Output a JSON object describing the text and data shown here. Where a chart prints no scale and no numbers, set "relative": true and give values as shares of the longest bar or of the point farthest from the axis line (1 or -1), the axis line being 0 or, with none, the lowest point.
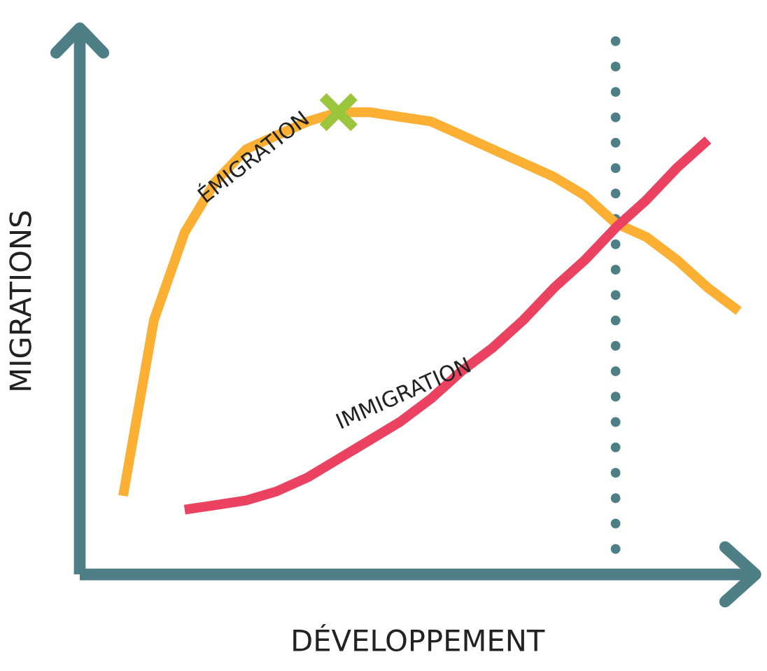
{
  "chart_data": {
    "type": "line",
    "relative": true,
    "xlabel": "DÉVELOPPEMENT",
    "ylabel": "MIGRATIONS",
    "categories": [
      null,
      null,
      null,
      null,
      null,
      null,
      null,
      null,
      null,
      null,
      null,
      null,
      null,
      null,
      null,
      null,
      null,
      null,
      null,
      null,
      null
    ],
    "series": [
      {
        "name": "ÉMIGRATION",
        "color": "#fbb034",
        "values": [
          0.17,
          0.55,
          0.74,
          0.85,
          0.92,
          0.95,
          0.98,
          1.0,
          1.0,
          0.99,
          0.98,
          0.95,
          0.92,
          0.89,
          0.86,
          0.82,
          0.76,
          0.73,
          0.68,
          0.62,
          0.57
        ]
      },
      {
        "name": "IMMIGRATION",
        "color": "#ec4261",
        "values": [
          null,
          null,
          0.14,
          0.15,
          0.16,
          0.18,
          0.21,
          0.25,
          0.29,
          0.33,
          0.38,
          0.44,
          0.49,
          0.55,
          0.62,
          0.68,
          0.75,
          0.81,
          0.88,
          0.94,
          null
        ]
      }
    ],
    "grid": false,
    "legend": false,
    "tick_labels": false
  }
}
